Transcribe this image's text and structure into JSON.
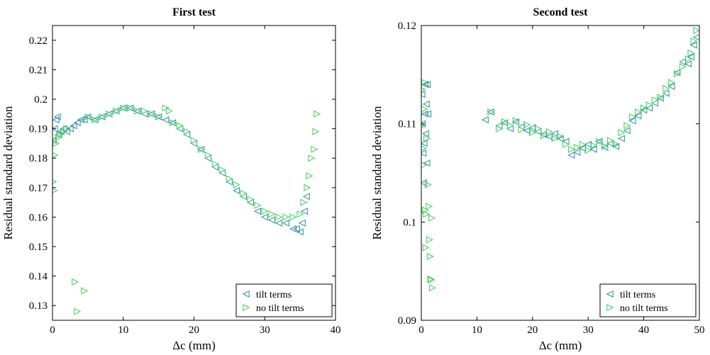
{
  "chart_data": [
    {
      "type": "scatter",
      "title": "First test",
      "xlabel": "Δc (mm)",
      "ylabel": "Residual standard deviation",
      "xlim": [
        0,
        40
      ],
      "ylim": [
        0.125,
        0.225
      ],
      "xticks": [
        "0",
        "10",
        "20",
        "30",
        "40"
      ],
      "yticks": [
        "0.13",
        "0.14",
        "0.15",
        "0.16",
        "0.17",
        "0.18",
        "0.19",
        "0.2",
        "0.21",
        "0.22"
      ],
      "grid": false,
      "legend_position": "bottom-right",
      "series": [
        {
          "name": "tilt terms",
          "marker": "triangle-left",
          "color": "#2a8fa0",
          "x": [
            0.1,
            0.3,
            0.5,
            0.7,
            0.9,
            1.2,
            1.6,
            2.0,
            2.5,
            3.0,
            3.5,
            4.0,
            4.5,
            5.0,
            6.0,
            7.0,
            8.0,
            9.0,
            10.0,
            11.0,
            12.0,
            13.0,
            14.0,
            15.0,
            16.0,
            17.0,
            18.0,
            19.0,
            20.0,
            21.0,
            22.0,
            23.0,
            24.0,
            25.0,
            26.0,
            27.0,
            28.0,
            29.0,
            30.0,
            31.0,
            32.0,
            33.0,
            34.0,
            34.5,
            35.0,
            35.3,
            35.6,
            35.9
          ],
          "y": [
            0.186,
            0.19,
            0.193,
            0.194,
            0.188,
            0.189,
            0.19,
            0.189,
            0.19,
            0.191,
            0.192,
            0.193,
            0.193,
            0.194,
            0.193,
            0.194,
            0.195,
            0.196,
            0.197,
            0.197,
            0.196,
            0.195,
            0.195,
            0.194,
            0.193,
            0.192,
            0.19,
            0.188,
            0.185,
            0.183,
            0.18,
            0.177,
            0.175,
            0.172,
            0.169,
            0.167,
            0.165,
            0.162,
            0.16,
            0.159,
            0.158,
            0.158,
            0.156,
            0.156,
            0.155,
            0.158,
            0.162,
            0.167
          ]
        },
        {
          "name": "no tilt terms",
          "marker": "triangle-right",
          "color": "#3ccf5a",
          "x": [
            0.1,
            0.2,
            0.3,
            0.5,
            0.8,
            1.0,
            1.5,
            2.0,
            3.2,
            3.5,
            4.5,
            5.0,
            6.0,
            7.0,
            8.0,
            9.0,
            10.0,
            11.0,
            12.0,
            13.0,
            14.0,
            15.0,
            16.0,
            16.5,
            17.0,
            18.0,
            19.0,
            20.0,
            21.0,
            22.0,
            23.0,
            24.0,
            25.0,
            26.0,
            27.0,
            28.0,
            29.0,
            30.0,
            31.0,
            32.0,
            33.0,
            34.0,
            35.0,
            35.5,
            36.0,
            36.3,
            36.6,
            37.0,
            37.2,
            37.4
          ],
          "y": [
            0.172,
            0.169,
            0.181,
            0.185,
            0.187,
            0.188,
            0.189,
            0.19,
            0.138,
            0.128,
            0.135,
            0.194,
            0.193,
            0.194,
            0.195,
            0.196,
            0.197,
            0.197,
            0.196,
            0.196,
            0.195,
            0.194,
            0.197,
            0.196,
            0.192,
            0.191,
            0.189,
            0.186,
            0.183,
            0.181,
            0.178,
            0.176,
            0.173,
            0.171,
            0.168,
            0.166,
            0.164,
            0.162,
            0.161,
            0.16,
            0.16,
            0.16,
            0.161,
            0.165,
            0.17,
            0.174,
            0.18,
            0.183,
            0.189,
            0.195
          ]
        }
      ]
    },
    {
      "type": "scatter",
      "title": "Second test",
      "xlabel": "Δc (mm)",
      "ylabel": "Residual standard deviation",
      "xlim": [
        0,
        50
      ],
      "ylim": [
        0.09,
        0.12
      ],
      "xticks": [
        "0",
        "10",
        "20",
        "30",
        "40",
        "50"
      ],
      "yticks": [
        "0.09",
        "0.1",
        "0.11",
        "0.12"
      ],
      "grid": false,
      "legend_position": "bottom-right",
      "series": [
        {
          "name": "tilt terms",
          "marker": "triangle-left",
          "color": "#2a8fa0",
          "x": [
            0.1,
            0.2,
            0.3,
            0.4,
            0.5,
            0.6,
            0.7,
            0.8,
            0.9,
            1.0,
            1.1,
            1.2,
            11.5,
            12.5,
            14.0,
            15.0,
            16.0,
            17.0,
            18.0,
            19.0,
            20.0,
            21.0,
            22.0,
            23.0,
            24.0,
            25.0,
            26.0,
            27.0,
            28.0,
            29.0,
            30.0,
            31.0,
            32.0,
            33.0,
            34.0,
            35.0,
            36.0,
            37.0,
            38.0,
            39.0,
            40.0,
            41.0,
            42.0,
            43.0,
            44.0,
            45.0,
            46.0,
            47.0,
            48.0,
            48.5,
            49.0,
            49.5
          ],
          "y": [
            0.113,
            0.11,
            0.107,
            0.104,
            0.108,
            0.111,
            0.114,
            0.109,
            0.112,
            0.106,
            0.114,
            0.111,
            0.1104,
            0.1112,
            0.1098,
            0.1101,
            0.1095,
            0.1102,
            0.1097,
            0.1093,
            0.1096,
            0.1092,
            0.1089,
            0.1087,
            0.109,
            0.1085,
            0.1082,
            0.1068,
            0.1071,
            0.1075,
            0.1079,
            0.1074,
            0.1082,
            0.1076,
            0.108,
            0.1077,
            0.1085,
            0.1093,
            0.1103,
            0.1108,
            0.1114,
            0.1116,
            0.1121,
            0.1126,
            0.1131,
            0.1138,
            0.1152,
            0.1163,
            0.1161,
            0.1168,
            0.118,
            0.1188
          ]
        },
        {
          "name": "no tilt terms",
          "marker": "triangle-right",
          "color": "#3ccf5a",
          "x": [
            0.1,
            0.2,
            0.3,
            0.4,
            0.5,
            0.6,
            0.7,
            0.8,
            0.9,
            1.0,
            1.2,
            1.4,
            1.5,
            1.6,
            1.7,
            1.8,
            1.9,
            2.0,
            12.5,
            14.0,
            15.0,
            16.0,
            17.0,
            18.0,
            19.0,
            20.0,
            21.0,
            22.0,
            23.0,
            24.0,
            25.0,
            26.0,
            27.0,
            28.0,
            29.0,
            30.0,
            31.0,
            32.0,
            33.0,
            34.0,
            35.0,
            36.0,
            37.0,
            38.0,
            39.0,
            40.0,
            41.0,
            42.0,
            43.0,
            44.0,
            45.0,
            46.0,
            47.0,
            48.0,
            48.5,
            49.0,
            49.5
          ],
          "y": [
            0.1135,
            0.1098,
            0.1075,
            0.1058,
            0.1115,
            0.1142,
            0.1012,
            0.0974,
            0.1008,
            0.1085,
            0.1038,
            0.1016,
            0.0982,
            0.0965,
            0.0942,
            0.0941,
            0.1004,
            0.0933,
            0.1112,
            0.1095,
            0.1102,
            0.1098,
            0.1103,
            0.1094,
            0.1099,
            0.1091,
            0.1095,
            0.1088,
            0.1092,
            0.1085,
            0.1087,
            0.1079,
            0.1074,
            0.1076,
            0.1079,
            0.1073,
            0.1078,
            0.1082,
            0.1077,
            0.1083,
            0.1079,
            0.1091,
            0.1098,
            0.1107,
            0.1112,
            0.1116,
            0.1119,
            0.1124,
            0.1127,
            0.1136,
            0.1142,
            0.1151,
            0.1158,
            0.1166,
            0.1172,
            0.1184,
            0.1195
          ]
        }
      ]
    }
  ]
}
